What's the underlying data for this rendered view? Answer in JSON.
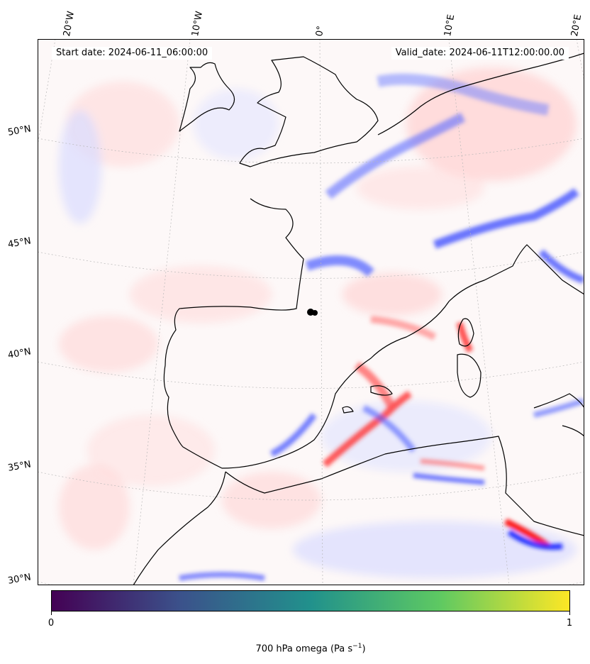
{
  "header": {
    "start_date": "Start date: 2024-06-11_06:00:00",
    "valid_date": "Valid_date: 2024-06-11T12:00:00.00"
  },
  "longitude_labels": [
    "20°W",
    "10°W",
    "0°",
    "10°E",
    "20°E"
  ],
  "latitude_labels": [
    "50°N",
    "45°N",
    "40°N",
    "35°N",
    "30°N"
  ],
  "colorbar": {
    "tick_min": "0",
    "tick_max": "1",
    "label_main": "700 hPa omega (Pa s",
    "label_exponent": "−1",
    "label_close": ")",
    "colormap": "viridis",
    "colors": [
      "#440154",
      "#3b528b",
      "#21918c",
      "#5ec962",
      "#fde725"
    ]
  },
  "field": {
    "positive_color": "#ff0000",
    "negative_color": "#0000ff",
    "neutral_color": "#ffffff"
  },
  "icons": [
    "coastline-overlay",
    "marker-dot-icon"
  ]
}
